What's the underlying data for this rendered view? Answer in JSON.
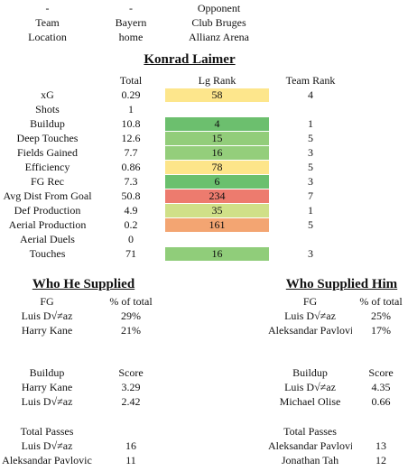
{
  "header": {
    "rows": [
      [
        "-",
        "-",
        "Opponent"
      ],
      [
        "Team",
        "Bayern",
        "Club Bruges"
      ],
      [
        "Location",
        "home",
        "Allianz Arena"
      ]
    ]
  },
  "player": {
    "name": "Konrad Laimer",
    "columns": [
      "Total",
      "Lg Rank",
      "Team Rank"
    ],
    "rows": [
      {
        "label": "xG",
        "total": 0.29,
        "lg_rank": 58,
        "color": "#fde68c",
        "team_rank": 4
      },
      {
        "label": "Shots",
        "total": 1,
        "lg_rank": null,
        "color": null,
        "team_rank": null
      },
      {
        "label": "Buildup",
        "total": 10.8,
        "lg_rank": 4,
        "color": "#6cbf6e",
        "team_rank": 1
      },
      {
        "label": "Deep Touches",
        "total": 12.6,
        "lg_rank": 15,
        "color": "#92cd7a",
        "team_rank": 5
      },
      {
        "label": "Fields Gained",
        "total": 7.7,
        "lg_rank": 16,
        "color": "#94ce7b",
        "team_rank": 3
      },
      {
        "label": "Efficiency",
        "total": 0.86,
        "lg_rank": 78,
        "color": "#fde58a",
        "team_rank": 5
      },
      {
        "label": "FG Rec",
        "total": 7.3,
        "lg_rank": 6,
        "color": "#6ac06e",
        "team_rank": 3
      },
      {
        "label": "Avg Dist From Goal",
        "total": 50.8,
        "lg_rank": 234,
        "color": "#ed7b6e",
        "team_rank": 7
      },
      {
        "label": "Def Production",
        "total": 4.9,
        "lg_rank": 35,
        "color": "#d0e088",
        "team_rank": 1
      },
      {
        "label": "Aerial Production",
        "total": 0.2,
        "lg_rank": 161,
        "color": "#f3a572",
        "team_rank": 5
      },
      {
        "label": "Aerial Duels",
        "total": 0,
        "lg_rank": null,
        "color": null,
        "team_rank": null
      },
      {
        "label": "Touches",
        "total": 71,
        "lg_rank": 16,
        "color": "#90cd7a",
        "team_rank": 3
      }
    ]
  },
  "supplied": {
    "title": "Who He Supplied",
    "tables": [
      {
        "columns": [
          "FG",
          "% of total"
        ],
        "rows": [
          [
            "Luis D√≠az",
            "29%"
          ],
          [
            "Harry Kane",
            "21%"
          ]
        ]
      },
      {
        "columns": [
          "Buildup",
          "Score"
        ],
        "rows": [
          [
            "Harry Kane",
            3.29
          ],
          [
            "Luis D√≠az",
            2.42
          ]
        ]
      },
      {
        "columns": [
          "Total Passes",
          ""
        ],
        "rows": [
          [
            "Luis D√≠az",
            16
          ],
          [
            "Aleksandar Pavlovic",
            11
          ]
        ]
      }
    ]
  },
  "supplied_by": {
    "title": "Who Supplied Him",
    "tables": [
      {
        "columns": [
          "FG",
          "% of total"
        ],
        "rows": [
          [
            "Luis D√≠az",
            "25%"
          ],
          [
            "Aleksandar Pavlovic",
            "17%"
          ]
        ]
      },
      {
        "columns": [
          "Buildup",
          "Score"
        ],
        "rows": [
          [
            "Luis D√≠az",
            4.35
          ],
          [
            "Michael Olise",
            0.66
          ]
        ]
      },
      {
        "columns": [
          "Total Passes",
          ""
        ],
        "rows": [
          [
            "Aleksandar Pavlovic",
            13
          ],
          [
            "Jonathan Tah",
            12
          ]
        ]
      }
    ]
  }
}
